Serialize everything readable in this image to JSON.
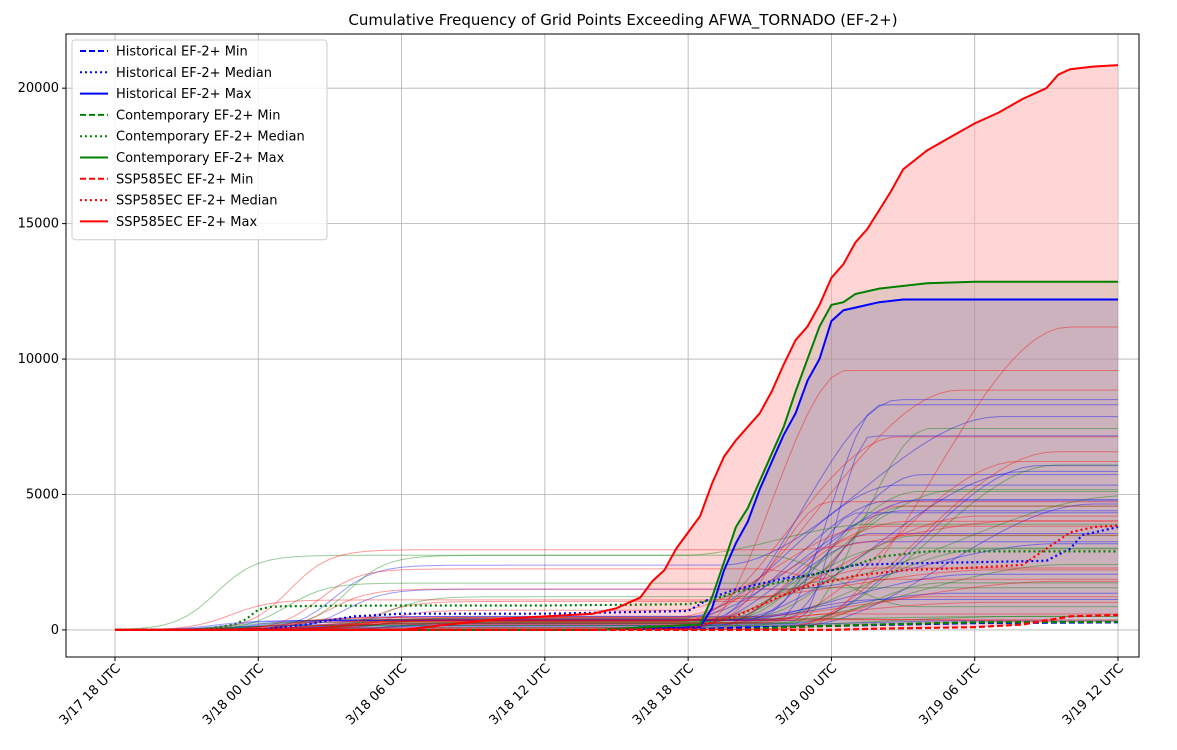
{
  "colors": {
    "historical": "#0000ff",
    "contemporary": "#008000",
    "ssp585ec": "#ff0000",
    "ssp585ec_fill": "#ffb3b3",
    "overlap_fill": "#b8a0ad",
    "grid": "#b0b0b0",
    "axis": "#000000"
  },
  "chart_data": {
    "type": "line",
    "title": "Cumulative Frequency of Grid Points Exceeding AFWA_TORNADO (EF-2+)",
    "xlabel": "",
    "ylabel": "",
    "x_ticks": [
      "3/17 18 UTC",
      "3/18 00 UTC",
      "3/18 06 UTC",
      "3/18 12 UTC",
      "3/18 18 UTC",
      "3/19 00 UTC",
      "3/19 06 UTC",
      "3/19 12 UTC"
    ],
    "x_range_hours": [
      0,
      42
    ],
    "y_ticks": [
      0,
      5000,
      10000,
      15000,
      20000
    ],
    "ylim": [
      -1000,
      22000
    ],
    "grid": true,
    "legend_position": "top-left",
    "series": [
      {
        "name": "Historical EF-2+ Min",
        "color": "#0000ff",
        "style": "dashed",
        "points": [
          [
            0,
            0
          ],
          [
            24,
            0
          ],
          [
            26,
            80
          ],
          [
            30,
            150
          ],
          [
            36,
            250
          ],
          [
            42,
            280
          ]
        ]
      },
      {
        "name": "Historical EF-2+ Median",
        "color": "#0000ff",
        "style": "dotted",
        "points": [
          [
            0,
            0
          ],
          [
            6,
            0
          ],
          [
            7,
            100
          ],
          [
            8,
            200
          ],
          [
            9,
            350
          ],
          [
            10,
            500
          ],
          [
            12,
            600
          ],
          [
            18,
            600
          ],
          [
            24,
            700
          ],
          [
            25,
            1200
          ],
          [
            26,
            1500
          ],
          [
            27,
            1700
          ],
          [
            28,
            1900
          ],
          [
            29,
            2000
          ],
          [
            30,
            2200
          ],
          [
            31,
            2400
          ],
          [
            33,
            2450
          ],
          [
            36,
            2500
          ],
          [
            39,
            2550
          ],
          [
            40,
            3000
          ],
          [
            40.5,
            3500
          ],
          [
            42,
            3800
          ]
        ]
      },
      {
        "name": "Historical EF-2+ Max",
        "color": "#0000ff",
        "style": "solid",
        "points": [
          [
            0,
            0
          ],
          [
            20,
            0
          ],
          [
            24.5,
            100
          ],
          [
            25,
            800
          ],
          [
            25.5,
            2200
          ],
          [
            26,
            3200
          ],
          [
            26.5,
            4000
          ],
          [
            27,
            5200
          ],
          [
            27.5,
            6200
          ],
          [
            28,
            7200
          ],
          [
            28.5,
            8000
          ],
          [
            29,
            9200
          ],
          [
            29.5,
            10000
          ],
          [
            30,
            11400
          ],
          [
            30.5,
            11800
          ],
          [
            31,
            11900
          ],
          [
            31.5,
            12000
          ],
          [
            32,
            12100
          ],
          [
            33,
            12200
          ],
          [
            36,
            12200
          ],
          [
            42,
            12200
          ]
        ]
      },
      {
        "name": "Contemporary EF-2+ Min",
        "color": "#008000",
        "style": "dashed",
        "points": [
          [
            0,
            0
          ],
          [
            26,
            0
          ],
          [
            28,
            100
          ],
          [
            32,
            200
          ],
          [
            36,
            280
          ],
          [
            42,
            300
          ]
        ]
      },
      {
        "name": "Contemporary EF-2+ Median",
        "color": "#008000",
        "style": "dotted",
        "points": [
          [
            0,
            0
          ],
          [
            3,
            0
          ],
          [
            4,
            50
          ],
          [
            5,
            200
          ],
          [
            5.5,
            400
          ],
          [
            6,
            750
          ],
          [
            6.5,
            850
          ],
          [
            7,
            870
          ],
          [
            9,
            890
          ],
          [
            12,
            900
          ],
          [
            18,
            900
          ],
          [
            24,
            950
          ],
          [
            25,
            1100
          ],
          [
            26,
            1400
          ],
          [
            27,
            1600
          ],
          [
            28,
            1800
          ],
          [
            29,
            2000
          ],
          [
            30,
            2200
          ],
          [
            31,
            2400
          ],
          [
            32,
            2700
          ],
          [
            33,
            2800
          ],
          [
            34,
            2900
          ],
          [
            36,
            2900
          ],
          [
            42,
            2900
          ]
        ]
      },
      {
        "name": "Contemporary EF-2+ Max",
        "color": "#008000",
        "style": "solid",
        "points": [
          [
            0,
            0
          ],
          [
            20,
            0
          ],
          [
            24.5,
            200
          ],
          [
            25,
            1200
          ],
          [
            25.5,
            2500
          ],
          [
            26,
            3800
          ],
          [
            26.5,
            4500
          ],
          [
            27,
            5500
          ],
          [
            27.5,
            6500
          ],
          [
            28,
            7500
          ],
          [
            28.5,
            8800
          ],
          [
            29,
            10000
          ],
          [
            29.5,
            11200
          ],
          [
            30,
            12000
          ],
          [
            30.5,
            12100
          ],
          [
            31,
            12400
          ],
          [
            32,
            12600
          ],
          [
            34,
            12800
          ],
          [
            36,
            12850
          ],
          [
            42,
            12850
          ]
        ]
      },
      {
        "name": "SSP585EC EF-2+ Min",
        "color": "#ff0000",
        "style": "dashed",
        "points": [
          [
            0,
            0
          ],
          [
            30,
            0
          ],
          [
            32,
            50
          ],
          [
            36,
            100
          ],
          [
            38,
            200
          ],
          [
            40,
            500
          ],
          [
            42,
            550
          ]
        ]
      },
      {
        "name": "SSP585EC EF-2+ Median",
        "color": "#ff0000",
        "style": "dotted",
        "points": [
          [
            0,
            0
          ],
          [
            20,
            0
          ],
          [
            24,
            50
          ],
          [
            26,
            500
          ],
          [
            27,
            900
          ],
          [
            28,
            1300
          ],
          [
            29,
            1600
          ],
          [
            30,
            1800
          ],
          [
            31,
            2000
          ],
          [
            32,
            2100
          ],
          [
            33,
            2200
          ],
          [
            36,
            2300
          ],
          [
            38,
            2400
          ],
          [
            39,
            3000
          ],
          [
            40,
            3600
          ],
          [
            41,
            3800
          ],
          [
            42,
            3850
          ]
        ]
      },
      {
        "name": "SSP585EC EF-2+ Max",
        "color": "#ff0000",
        "style": "solid",
        "points": [
          [
            0,
            0
          ],
          [
            12,
            0
          ],
          [
            14,
            200
          ],
          [
            16,
            400
          ],
          [
            18,
            500
          ],
          [
            20,
            600
          ],
          [
            21,
            800
          ],
          [
            22,
            1200
          ],
          [
            22.5,
            1800
          ],
          [
            23,
            2200
          ],
          [
            23.5,
            3000
          ],
          [
            24,
            3600
          ],
          [
            24.5,
            4200
          ],
          [
            25,
            5400
          ],
          [
            25.5,
            6400
          ],
          [
            26,
            7000
          ],
          [
            27,
            8000
          ],
          [
            27.5,
            8800
          ],
          [
            28,
            9800
          ],
          [
            28.5,
            10700
          ],
          [
            29,
            11200
          ],
          [
            29.5,
            12000
          ],
          [
            30,
            13000
          ],
          [
            30.5,
            13500
          ],
          [
            31,
            14300
          ],
          [
            31.5,
            14800
          ],
          [
            32,
            15500
          ],
          [
            32.5,
            16200
          ],
          [
            33,
            17000
          ],
          [
            34,
            17700
          ],
          [
            35,
            18200
          ],
          [
            36,
            18700
          ],
          [
            37,
            19100
          ],
          [
            38,
            19600
          ],
          [
            39,
            20000
          ],
          [
            39.5,
            20500
          ],
          [
            40,
            20700
          ],
          [
            41,
            20800
          ],
          [
            42,
            20850
          ]
        ]
      }
    ],
    "member_line_alpha": 0.4
  }
}
